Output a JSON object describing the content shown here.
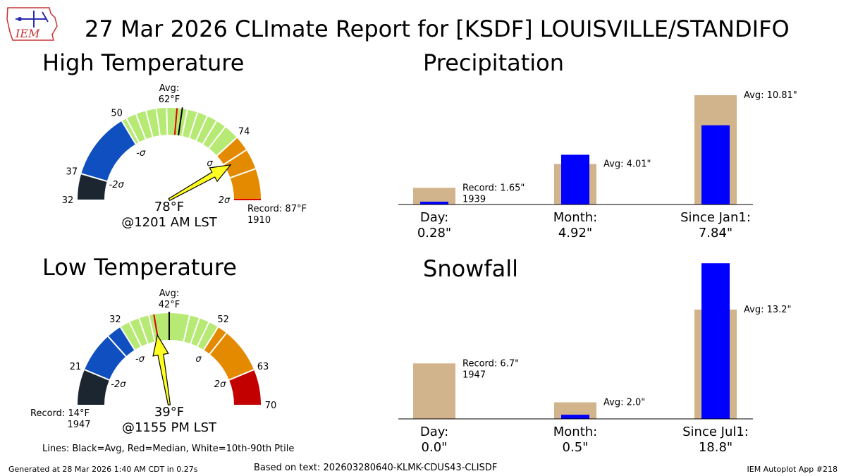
{
  "title": "27 Mar 2026 CLImate Report for [KSDF] LOUISVILLE/STANDIFO",
  "logo_text": "IEM",
  "footer": {
    "generated": "Generated at 28 Mar 2026 1:40 AM CDT in 0.27s",
    "based_on": "Based on text: 202603280640-KLMK-CDUS43-CLISDF",
    "app": "IEM Autoplot App #218",
    "lines_note": "Lines: Black=Avg, Red=Median, White=10th-90th Ptile"
  },
  "colors": {
    "gauge_dark": "#1b2631",
    "gauge_blue": "#0f4fc0",
    "gauge_green": "#b7e975",
    "gauge_orange": "#e48a00",
    "gauge_red": "#c20000",
    "bar_avg": "#d2b48c",
    "bar_obs": "#0000ff",
    "needle": "#ffff22"
  },
  "chart_data": [
    {
      "type": "gauge",
      "title": "High Temperature",
      "range": [
        32,
        87
      ],
      "ticks": [
        32,
        37,
        50,
        74
      ],
      "bands": [
        {
          "from": 32,
          "to": 37,
          "color": "#1b2631"
        },
        {
          "from": 37,
          "to": 50,
          "color": "#0f4fc0"
        },
        {
          "from": 50,
          "to": 74,
          "color": "#b7e975"
        },
        {
          "from": 74,
          "to": 87,
          "color": "#e48a00"
        }
      ],
      "sigma_labels": [
        {
          "text": "-2σ",
          "value": 37
        },
        {
          "text": "-σ",
          "value": 50
        },
        {
          "text": "σ",
          "value": 74
        },
        {
          "text": "2σ",
          "value": 87
        }
      ],
      "average": 62,
      "average_label": "Avg:",
      "average_value_label": "62°F",
      "median": 61,
      "percentile_lines": [
        51,
        53,
        55,
        57,
        59,
        63,
        65,
        67,
        69,
        71,
        77,
        81
      ],
      "observed": 78,
      "observed_label": "78°F",
      "observed_time": "@1201 AM LST",
      "record_label": "Record: 87°F",
      "record_year": "1910",
      "record_value": 87
    },
    {
      "type": "bar",
      "title": "Precipitation",
      "categories": [
        "Day:",
        "Month:",
        "Since Jan1:"
      ],
      "category_values": [
        "0.28\"",
        "4.92\"",
        "7.84\""
      ],
      "series": [
        {
          "name": "Avg/Record",
          "values": [
            1.65,
            4.01,
            10.81
          ]
        },
        {
          "name": "Observed",
          "values": [
            0.28,
            4.92,
            7.84
          ]
        }
      ],
      "annotations": [
        {
          "text": "Record: 1.65\"",
          "sub": "1939"
        },
        {
          "text": "Avg: 4.01\"",
          "sub": ""
        },
        {
          "text": "Avg: 10.81\"",
          "sub": ""
        }
      ]
    },
    {
      "type": "gauge",
      "title": "Low Temperature",
      "range": [
        14,
        70
      ],
      "ticks": [
        21,
        32,
        52,
        63,
        70
      ],
      "bands": [
        {
          "from": 14,
          "to": 21,
          "color": "#1b2631"
        },
        {
          "from": 21,
          "to": 32,
          "color": "#0f4fc0"
        },
        {
          "from": 32,
          "to": 52,
          "color": "#b7e975"
        },
        {
          "from": 52,
          "to": 63,
          "color": "#e48a00"
        },
        {
          "from": 63,
          "to": 70,
          "color": "#c20000"
        }
      ],
      "sigma_labels": [
        {
          "text": "-2σ",
          "value": 21
        },
        {
          "text": "-σ",
          "value": 32
        },
        {
          "text": "σ",
          "value": 52
        },
        {
          "text": "2σ",
          "value": 63
        }
      ],
      "average": 42,
      "average_label": "Avg:",
      "average_value_label": "42°F",
      "median": 39,
      "percentile_lines": [
        29,
        34,
        36,
        38,
        46,
        48,
        50,
        54
      ],
      "observed": 39,
      "observed_label": "39°F",
      "observed_time": "@1155 PM LST",
      "record_label": "Record: 14°F",
      "record_year": "1947",
      "record_value": 14
    },
    {
      "type": "bar",
      "title": "Snowfall",
      "categories": [
        "Day:",
        "Month:",
        "Since Jul1:"
      ],
      "category_values": [
        "0.0\"",
        "0.5\"",
        "18.8\""
      ],
      "series": [
        {
          "name": "Avg/Record",
          "values": [
            6.7,
            2.0,
            13.2
          ]
        },
        {
          "name": "Observed",
          "values": [
            0.0,
            0.5,
            18.8
          ]
        }
      ],
      "annotations": [
        {
          "text": "Record: 6.7\"",
          "sub": "1947"
        },
        {
          "text": "Avg: 2.0\"",
          "sub": ""
        },
        {
          "text": "Avg: 13.2\"",
          "sub": ""
        }
      ]
    }
  ]
}
